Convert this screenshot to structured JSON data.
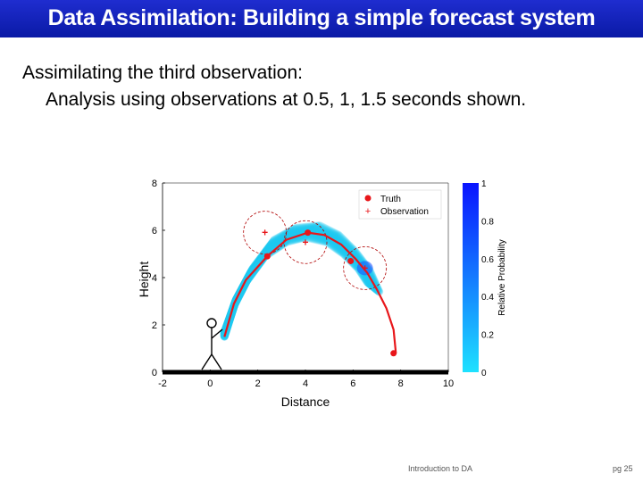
{
  "slide": {
    "title": "Data Assimilation: Building a simple forecast system",
    "line1": "Assimilating the third observation:",
    "line2": "Analysis using observations at 0.5, 1, 1.5 seconds shown.",
    "footer_center": "Introduction to DA",
    "footer_right": "pg 25"
  },
  "colors": {
    "title_bar": "#0f20b8",
    "ensemble": "#1ec8f0",
    "truth": "#e8161a",
    "observation": "#e8161a",
    "colorbar_top": "#0a14ff",
    "colorbar_bottom": "#1ee1ff"
  },
  "chart_data": {
    "type": "scatter",
    "xlabel": "Distance",
    "ylabel": "Height",
    "xlim": [
      -2,
      10
    ],
    "ylim": [
      0,
      8
    ],
    "xticks": [
      "-2",
      "0",
      "2",
      "4",
      "6",
      "8",
      "10"
    ],
    "yticks": [
      "0",
      "2",
      "4",
      "6",
      "8"
    ],
    "legend_position": "top-right",
    "series": [
      {
        "name": "Truth",
        "type": "line+points",
        "x": [
          0.6,
          1.0,
          1.5,
          2.4,
          3.2,
          4.1,
          4.8,
          5.5,
          6.1,
          6.6,
          7.0,
          7.4,
          7.7,
          7.8
        ],
        "y": [
          1.5,
          2.9,
          3.9,
          4.9,
          5.6,
          5.9,
          5.8,
          5.4,
          4.8,
          4.2,
          3.5,
          2.7,
          1.8,
          0.8
        ],
        "markers": [
          {
            "x": 2.4,
            "y": 4.9
          },
          {
            "x": 4.1,
            "y": 5.9
          },
          {
            "x": 5.9,
            "y": 4.7
          },
          {
            "x": 7.7,
            "y": 0.8
          }
        ]
      },
      {
        "name": "Observation",
        "type": "points",
        "x": [
          2.3,
          4.0,
          6.5
        ],
        "y": [
          5.9,
          5.5,
          4.4
        ],
        "uncertainty_radius": [
          0.9,
          0.9,
          0.9
        ]
      }
    ],
    "ensemble_tracks": [
      {
        "x": [
          0.6,
          1.1,
          1.8,
          2.7,
          3.6,
          4.6,
          5.4,
          6.1,
          6.7,
          7.1
        ],
        "y": [
          1.7,
          3.1,
          4.4,
          5.6,
          6.1,
          6.2,
          5.8,
          5.1,
          4.3,
          3.4
        ]
      },
      {
        "x": [
          0.6,
          1.0,
          1.5,
          2.3,
          3.2,
          4.0,
          4.9,
          5.6,
          6.2,
          6.6
        ],
        "y": [
          1.5,
          2.8,
          3.8,
          4.9,
          5.5,
          5.7,
          5.5,
          5.0,
          4.4,
          3.8
        ]
      }
    ],
    "colorbar": {
      "label": "Relative Probability",
      "ticks": [
        "0",
        "0.2",
        "0.4",
        "0.6",
        "0.8",
        "1"
      ]
    }
  }
}
